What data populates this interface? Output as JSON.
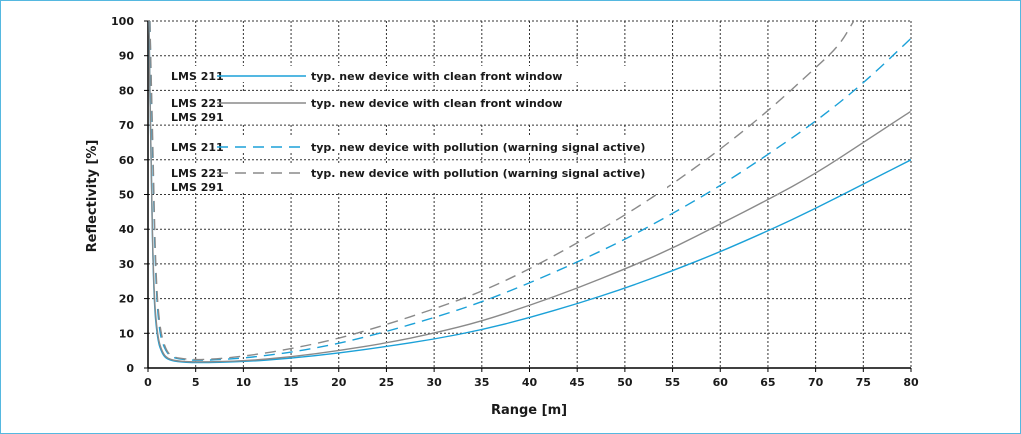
{
  "chart_data": {
    "type": "line",
    "title": "",
    "xlabel": "Range [m]",
    "ylabel": "Reflectivity [%]",
    "xlim": [
      0,
      80
    ],
    "ylim": [
      0,
      100
    ],
    "xticks": [
      0,
      5,
      10,
      15,
      20,
      25,
      30,
      35,
      40,
      45,
      50,
      55,
      60,
      65,
      70,
      75,
      80
    ],
    "yticks": [
      0,
      10,
      20,
      30,
      40,
      50,
      60,
      70,
      80,
      90,
      100
    ],
    "grid": true,
    "legend_position": "upper-left",
    "series": [
      {
        "device_lines": [
          "LMS 211"
        ],
        "description": "typ. new device with clean front window",
        "color": "#1ba1d8",
        "dash": "solid",
        "points": [
          [
            0.1,
            100
          ],
          [
            0.3,
            60
          ],
          [
            0.6,
            20
          ],
          [
            1,
            8
          ],
          [
            1.5,
            4
          ],
          [
            2,
            2.5
          ],
          [
            3,
            1.8
          ],
          [
            5,
            1.5
          ],
          [
            10,
            1.8
          ],
          [
            15,
            2.8
          ],
          [
            20,
            4.3
          ],
          [
            25,
            6.2
          ],
          [
            30,
            8.3
          ],
          [
            35,
            11
          ],
          [
            40,
            14.5
          ],
          [
            45,
            18.5
          ],
          [
            50,
            23
          ],
          [
            55,
            28
          ],
          [
            60,
            33.5
          ],
          [
            65,
            39.5
          ],
          [
            70,
            46
          ],
          [
            75,
            53
          ],
          [
            80,
            60
          ]
        ]
      },
      {
        "device_lines": [
          "LMS 221",
          "LMS 291"
        ],
        "description": "typ. new device with clean front window",
        "color": "#8a8a8a",
        "dash": "solid",
        "points": [
          [
            0.1,
            100
          ],
          [
            0.3,
            60
          ],
          [
            0.6,
            22
          ],
          [
            1,
            9
          ],
          [
            1.5,
            4.5
          ],
          [
            2,
            2.8
          ],
          [
            3,
            2
          ],
          [
            5,
            1.7
          ],
          [
            10,
            2
          ],
          [
            15,
            3.2
          ],
          [
            20,
            5
          ],
          [
            25,
            7.2
          ],
          [
            30,
            10
          ],
          [
            35,
            13.5
          ],
          [
            40,
            18
          ],
          [
            45,
            23
          ],
          [
            50,
            28.5
          ],
          [
            55,
            34.5
          ],
          [
            60,
            41.5
          ],
          [
            65,
            48.5
          ],
          [
            70,
            56
          ],
          [
            75,
            65
          ],
          [
            80,
            74
          ]
        ]
      },
      {
        "device_lines": [
          "LMS 211"
        ],
        "description": "typ. new device with pollution (warning signal active)",
        "color": "#1ba1d8",
        "dash": "dashed",
        "points": [
          [
            0.2,
            100
          ],
          [
            0.5,
            60
          ],
          [
            0.8,
            25
          ],
          [
            1.2,
            10
          ],
          [
            1.8,
            5
          ],
          [
            2.5,
            3
          ],
          [
            4,
            2.3
          ],
          [
            6,
            2.2
          ],
          [
            10,
            2.8
          ],
          [
            15,
            4.5
          ],
          [
            20,
            7
          ],
          [
            25,
            10.5
          ],
          [
            30,
            14.5
          ],
          [
            35,
            19
          ],
          [
            40,
            24.5
          ],
          [
            45,
            30.5
          ],
          [
            50,
            37
          ],
          [
            55,
            44.5
          ],
          [
            60,
            52.5
          ],
          [
            65,
            61.5
          ],
          [
            70,
            71
          ],
          [
            75,
            82
          ],
          [
            80,
            95
          ]
        ]
      },
      {
        "device_lines": [
          "LMS 221",
          "LMS 291"
        ],
        "description": "typ. new device with pollution (warning signal active)",
        "color": "#8a8a8a",
        "dash": "dashed",
        "points": [
          [
            0.2,
            100
          ],
          [
            0.5,
            65
          ],
          [
            0.8,
            28
          ],
          [
            1.2,
            12
          ],
          [
            1.8,
            5.5
          ],
          [
            2.5,
            3.2
          ],
          [
            4,
            2.5
          ],
          [
            6,
            2.4
          ],
          [
            10,
            3.3
          ],
          [
            15,
            5.5
          ],
          [
            20,
            8.5
          ],
          [
            25,
            12.5
          ],
          [
            30,
            17
          ],
          [
            35,
            22
          ],
          [
            40,
            28.5
          ],
          [
            45,
            36
          ],
          [
            50,
            44
          ],
          [
            55,
            53
          ],
          [
            60,
            63
          ],
          [
            65,
            74
          ],
          [
            70,
            86.5
          ],
          [
            72.5,
            93
          ],
          [
            74,
            100
          ]
        ]
      }
    ]
  }
}
